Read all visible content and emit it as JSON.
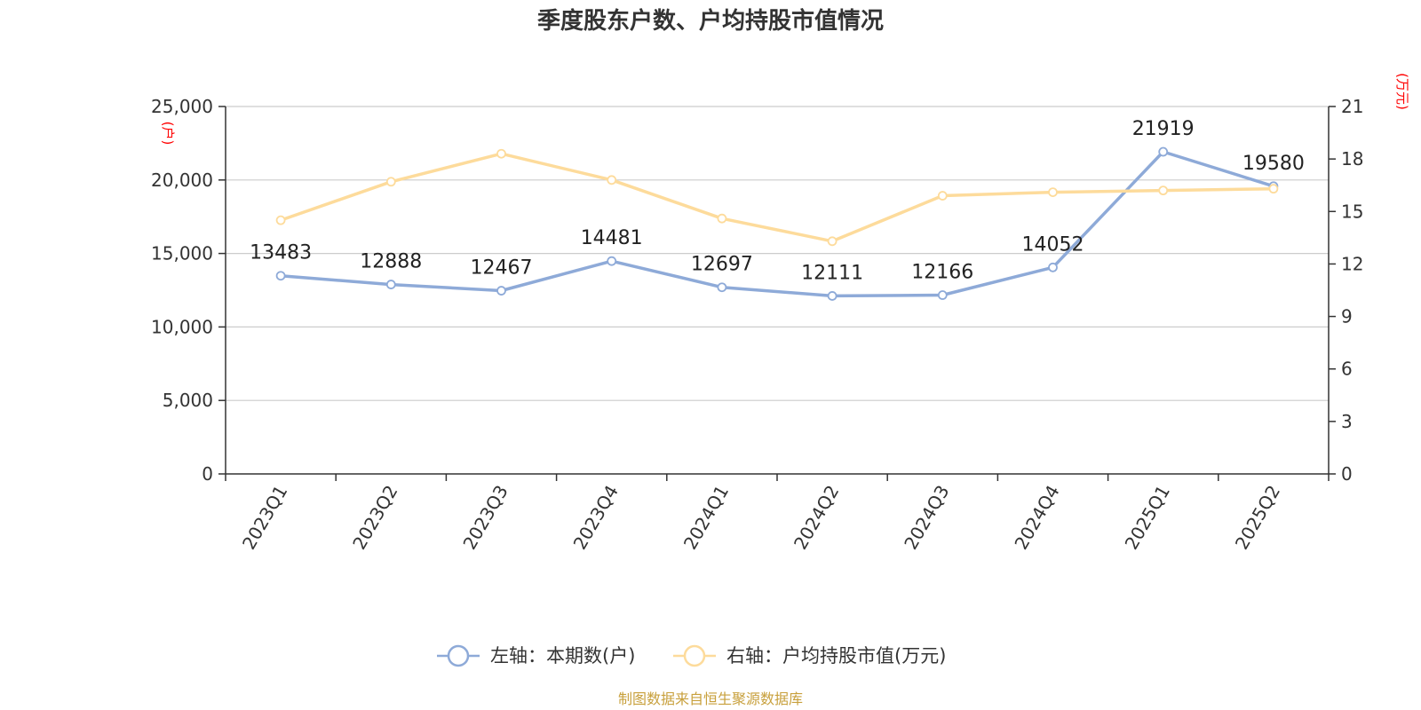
{
  "chart_data": {
    "type": "line",
    "title": "季度股东户数、户均持股市值情况",
    "categories": [
      "2023Q1",
      "2023Q2",
      "2023Q3",
      "2023Q4",
      "2024Q1",
      "2024Q2",
      "2024Q3",
      "2024Q4",
      "2025Q1",
      "2025Q2"
    ],
    "left_axis": {
      "unit_label": "(户)",
      "ylim": [
        0,
        25000
      ],
      "ticks": [
        0,
        5000,
        10000,
        15000,
        20000,
        25000
      ],
      "tick_labels": [
        "0",
        "5,000",
        "10,000",
        "15,000",
        "20,000",
        "25,000"
      ]
    },
    "right_axis": {
      "unit_label": "(万元)",
      "ylim": [
        0,
        21
      ],
      "ticks": [
        0,
        3,
        6,
        9,
        12,
        15,
        18,
        21
      ],
      "tick_labels": [
        "0",
        "3",
        "6",
        "9",
        "12",
        "15",
        "18",
        "21"
      ]
    },
    "series": [
      {
        "name": "左轴：本期数(户)",
        "axis": "left",
        "color": "#8eaad8",
        "values": [
          13483,
          12888,
          12467,
          14481,
          12697,
          12111,
          12166,
          14052,
          21919,
          19580
        ],
        "data_labels": [
          "13483",
          "12888",
          "12467",
          "14481",
          "12697",
          "12111",
          "12166",
          "14052",
          "21919",
          "19580"
        ]
      },
      {
        "name": "右轴：户均持股市值(万元)",
        "axis": "right",
        "color": "#fddb9b",
        "values": [
          14.5,
          16.7,
          18.3,
          16.8,
          14.6,
          13.3,
          15.9,
          16.1,
          16.2,
          16.3
        ]
      }
    ],
    "grid": true,
    "legend_position": "bottom-center"
  },
  "source_text": "制图数据来自恒生聚源数据库"
}
